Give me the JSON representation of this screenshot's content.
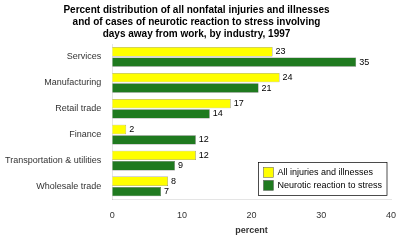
{
  "chart_data": {
    "type": "bar",
    "orientation": "horizontal",
    "title": "Percent distribution of all nonfatal injuries and illnesses\nand of cases of neurotic reaction to stress involving\ndays away from work, by industry, 1997",
    "categories": [
      "Services",
      "Manufacturing",
      "Retail trade",
      "Finance",
      "Transportation & utilities",
      "Wholesale trade"
    ],
    "series": [
      {
        "name": "All injuries and illnesses",
        "color": "#FFFF00",
        "values": [
          23,
          24,
          17,
          2,
          12,
          8
        ]
      },
      {
        "name": "Neurotic reaction to stress",
        "color": "#1f7a1f",
        "values": [
          35,
          21,
          14,
          12,
          9,
          7
        ]
      }
    ],
    "xlabel": "percent",
    "xlim": [
      0,
      40
    ],
    "xticks": [
      0,
      10,
      20,
      30,
      40
    ],
    "grid": false,
    "legend": "lower right",
    "data_labels": true
  }
}
